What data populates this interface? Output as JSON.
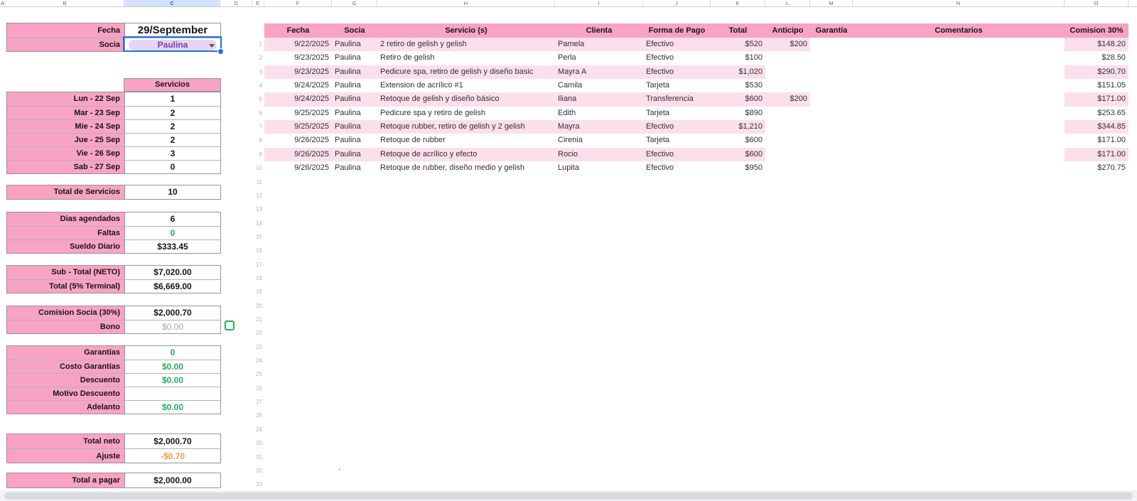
{
  "colors": {
    "header_pink": "#f8a3c5",
    "band_pink": "#fbdfeb",
    "green": "#23ab5b",
    "orange": "#f39a3b",
    "purple": "#7c3aad",
    "selection_blue": "#1a73e8",
    "checkbox_green": "#21b45f"
  },
  "sheet": {
    "columns": [
      "A",
      "B",
      "C",
      "D",
      "E",
      "F",
      "G",
      "H",
      "I",
      "J",
      "K",
      "L",
      "M",
      "N",
      "O"
    ],
    "selected_column": "C",
    "row_numbers": [
      1,
      2,
      3,
      4,
      5,
      6,
      7,
      8,
      9,
      10,
      11,
      12,
      13,
      14,
      15,
      16,
      17,
      18,
      19,
      20,
      21,
      22,
      23,
      24,
      25,
      26,
      27,
      28,
      29,
      30,
      31,
      32,
      33
    ]
  },
  "panel": {
    "fecha": {
      "label": "Fecha",
      "value": "29/September"
    },
    "socia": {
      "label": "Socia",
      "value": "Paulina"
    },
    "servicios_header": "Servicios",
    "days": [
      {
        "label": "Lun - 22 Sep",
        "value": "1"
      },
      {
        "label": "Mar - 23 Sep",
        "value": "2"
      },
      {
        "label": "Mie - 24 Sep",
        "value": "2"
      },
      {
        "label": "Jue - 25 Sep",
        "value": "2"
      },
      {
        "label": "Vie - 26 Sep",
        "value": "3"
      },
      {
        "label": "Sab - 27 Sep",
        "value": "0"
      }
    ],
    "total_servicios": {
      "label": "Total de Servicios",
      "value": "10"
    },
    "stats": [
      {
        "label": "Dias agendados",
        "value": "6"
      },
      {
        "label": "Faltas",
        "value": "0"
      },
      {
        "label": "Sueldo Diario",
        "value": "$333.45"
      }
    ],
    "subtotal": [
      {
        "label": "Sub - Total (NETO)",
        "value": "$7,020.00"
      },
      {
        "label": "Total  (5% Terminal)",
        "value": "$6,669.00"
      }
    ],
    "comision": [
      {
        "label": "Comision Socia (30%)",
        "value": "$2,000.70"
      },
      {
        "label": "Bono",
        "value": "$0.00"
      }
    ],
    "deductions": [
      {
        "label": "Garantías",
        "value": "0"
      },
      {
        "label": "Costo Garantías",
        "value": "$0.00"
      },
      {
        "label": "Descuento",
        "value": "$0.00"
      },
      {
        "label": "Motivo Descuento",
        "value": ""
      },
      {
        "label": "Adelanto",
        "value": "$0.00"
      }
    ],
    "totals": [
      {
        "label": "Total neto",
        "value": "$2,000.70"
      },
      {
        "label": "Ajuste",
        "value": "-$0.70"
      }
    ],
    "final": {
      "label": "Total a pagar",
      "value": "$2,000.00"
    }
  },
  "table": {
    "headers": [
      "Fecha",
      "Socia",
      "Servicio (s)",
      "Clienta",
      "Forma de Pago",
      "Total",
      "Anticipo",
      "Garantía",
      "Comentarios",
      "Comision 30%"
    ],
    "rows": [
      {
        "fecha": "9/22/2025",
        "socia": "Paulina",
        "servicio": "2 retiro de gelish y gelish",
        "clienta": "Pamela",
        "pago": "Efectivo",
        "total": "$520",
        "anticipo": "$200",
        "garantia": "",
        "comentarios": "",
        "comision": "$148.20"
      },
      {
        "fecha": "9/23/2025",
        "socia": "Paulina",
        "servicio": "Retiro de gelish",
        "clienta": "Perla",
        "pago": "Efectivo",
        "total": "$100",
        "anticipo": "",
        "garantia": "",
        "comentarios": "",
        "comision": "$28.50"
      },
      {
        "fecha": "9/23/2025",
        "socia": "Paulina",
        "servicio": "Pedicure spa, retiro de gelish y diseño basic",
        "clienta": "Mayra A",
        "pago": "Efectivo",
        "total": "$1,020",
        "anticipo": "",
        "garantia": "",
        "comentarios": "",
        "comision": "$290.70"
      },
      {
        "fecha": "9/24/2025",
        "socia": "Paulina",
        "servicio": "Extension de acrílico #1",
        "clienta": "Camila",
        "pago": "Tarjeta",
        "total": "$530",
        "anticipo": "",
        "garantia": "",
        "comentarios": "",
        "comision": "$151.05"
      },
      {
        "fecha": "9/24/2025",
        "socia": "Paulina",
        "servicio": "Retoque de gelish y diseño básico",
        "clienta": "Iliana",
        "pago": "Transferencia",
        "total": "$600",
        "anticipo": "$200",
        "garantia": "",
        "comentarios": "",
        "comision": "$171.00"
      },
      {
        "fecha": "9/25/2025",
        "socia": "Paulina",
        "servicio": "Pedicure spa y retiro de gelish",
        "clienta": "Edith",
        "pago": "Tarjeta",
        "total": "$890",
        "anticipo": "",
        "garantia": "",
        "comentarios": "",
        "comision": "$253.65"
      },
      {
        "fecha": "9/25/2025",
        "socia": "Paulina",
        "servicio": "Retoque rubber, retiro de gelish y 2 gelish",
        "clienta": "Mayra",
        "pago": "Efectivo",
        "total": "$1,210",
        "anticipo": "",
        "garantia": "",
        "comentarios": "",
        "comision": "$344.85"
      },
      {
        "fecha": "9/26/2025",
        "socia": "Paulina",
        "servicio": "Retoque de rubber",
        "clienta": "Cirenia",
        "pago": "Tarjeta",
        "total": "$600",
        "anticipo": "",
        "garantia": "",
        "comentarios": "",
        "comision": "$171.00"
      },
      {
        "fecha": "9/26/2025",
        "socia": "Paulina",
        "servicio": "Retoque de acrílico y efecto",
        "clienta": "Rocio",
        "pago": "Efectivo",
        "total": "$600",
        "anticipo": "",
        "garantia": "",
        "comentarios": "",
        "comision": "$171.00"
      },
      {
        "fecha": "9/26/2025",
        "socia": "Paulina",
        "servicio": "Retoque de rubber, diseño medio y gelish",
        "clienta": "Lupita",
        "pago": "Efectivo",
        "total": "$950",
        "anticipo": "",
        "garantia": "",
        "comentarios": "",
        "comision": "$270.75"
      }
    ]
  },
  "misc": {
    "stray_dot": "."
  }
}
